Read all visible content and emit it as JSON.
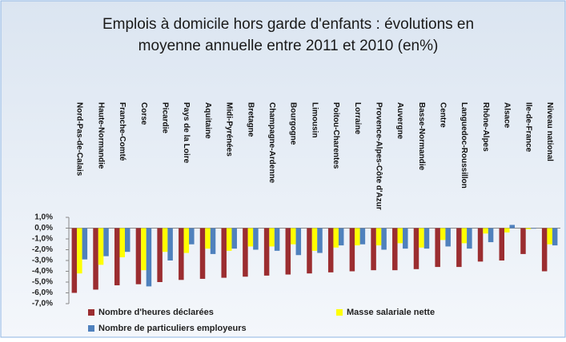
{
  "chart_data": {
    "type": "bar",
    "title": [
      "Emplois à domicile hors garde d'enfants : évolutions en",
      "moyenne annuelle entre 2011 et 2010 (en%)"
    ],
    "categories": [
      "Nord-Pas-de-Calais",
      "Haute-Normandie",
      "Franche-Comté",
      "Corse",
      "Picardie",
      "Pays de la Loire",
      "Aquitaine",
      "Midi-Pyrénées",
      "Bretagne",
      "Champagne-Ardenne",
      "Bourgogne",
      "Limousin",
      "Poitou-Charentes",
      "Lorraine",
      "Provence-Alpes-Côte d'Azur",
      "Auvergne",
      "Basse-Normandie",
      "Centre",
      "Languedoc-Roussillon",
      "Rhône-Alpes",
      "Alsace",
      "Ile-de-France",
      "Niveau national"
    ],
    "series": [
      {
        "name": "Nombre d'heures déclarées",
        "color": "#9b2d30",
        "values": [
          -6.0,
          -5.7,
          -5.3,
          -5.2,
          -5.0,
          -4.8,
          -4.7,
          -4.6,
          -4.5,
          -4.4,
          -4.3,
          -4.2,
          -4.1,
          -4.0,
          -3.9,
          -3.9,
          -3.8,
          -3.6,
          -3.6,
          -3.1,
          -3.0,
          -2.4,
          -4.0
        ]
      },
      {
        "name": "Masse salariale nette",
        "color": "#ffff00",
        "values": [
          -4.2,
          -3.4,
          -2.7,
          -3.9,
          -2.2,
          -2.3,
          -1.9,
          -2.1,
          -1.7,
          -1.7,
          -1.5,
          -2.1,
          -1.8,
          -1.6,
          -1.6,
          -1.4,
          -1.8,
          -1.1,
          -1.4,
          -0.5,
          -0.4,
          -0.1,
          -1.5
        ]
      },
      {
        "name": "Nombre de particuliers employeurs",
        "color": "#4f81bd",
        "values": [
          -2.9,
          -2.6,
          -2.2,
          -5.4,
          -3.0,
          -1.5,
          -2.4,
          -1.9,
          -2.0,
          -2.1,
          -2.5,
          -2.3,
          -1.6,
          -1.5,
          -2.0,
          -1.9,
          -1.9,
          -1.7,
          -1.9,
          -1.3,
          0.3,
          -0.05,
          -1.6
        ]
      }
    ],
    "ylim": [
      -7,
      1
    ],
    "yticks": [
      {
        "value": 1,
        "label": "1,0%"
      },
      {
        "value": 0,
        "label": "0,0%"
      },
      {
        "value": -1,
        "label": "-1,0%"
      },
      {
        "value": -2,
        "label": "-2,0%"
      },
      {
        "value": -3,
        "label": "-3,0%"
      },
      {
        "value": -4,
        "label": "-4,0%"
      },
      {
        "value": -5,
        "label": "-5,0%"
      },
      {
        "value": -6,
        "label": "-6,0%"
      },
      {
        "value": -7,
        "label": "-7,0%"
      }
    ],
    "grid": false,
    "legend": "bottom"
  }
}
